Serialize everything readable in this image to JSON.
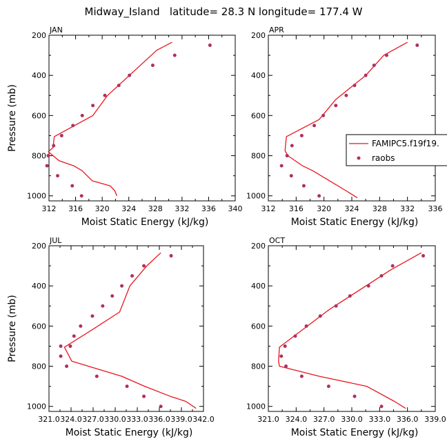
{
  "figure": {
    "title": "Midway_Island   latitude= 28.3 N longitude= 177.4 W"
  },
  "legend": {
    "entries": [
      {
        "label": "FAMIPC5.f19f19.",
        "kind": "line",
        "color": "#e8141c"
      },
      {
        "label": "raobs",
        "kind": "marker",
        "color": "#b03060"
      }
    ],
    "placement": "right of APR panel"
  },
  "colors": {
    "model_line": "#e8141c",
    "raobs_marker": "#b03060",
    "axes": "#000000"
  },
  "chart_data": [
    {
      "type": "line",
      "panel": "JAN",
      "title": "JAN",
      "xlabel": "Moist Static Energy (kJ/kg)",
      "ylabel": "Pressure (mb)",
      "xlim": [
        312,
        340
      ],
      "ylim": [
        1025,
        200
      ],
      "xticks": [
        312,
        316,
        320,
        324,
        328,
        332,
        336,
        340
      ],
      "xticklabels": [
        "312",
        "316",
        "320",
        "324",
        "328",
        "332",
        "336",
        "340"
      ],
      "yticks": [
        200,
        400,
        600,
        800,
        1000
      ],
      "yticklabels": [
        "200",
        "400",
        "600",
        "800",
        "1000"
      ],
      "series": [
        {
          "name": "FAMIPC5.f19f19.",
          "type": "line",
          "color": "#e8141c",
          "x": [
            330.5,
            328.2,
            320.8,
            318.6,
            312.8,
            312.6,
            311.9,
            313.5,
            315.7,
            317.0,
            318.5,
            321.2,
            321.9,
            322.2
          ],
          "y": [
            235,
            275,
            500,
            600,
            705,
            760,
            780,
            825,
            850,
            875,
            925,
            950,
            975,
            1000
          ]
        },
        {
          "name": "raobs",
          "type": "scatter",
          "color": "#b03060",
          "x": [
            336.2,
            330.9,
            327.6,
            324.1,
            322.5,
            320.4,
            318.6,
            317.0,
            315.6,
            313.9,
            312.7,
            311.9,
            311.7,
            313.3,
            315.5,
            316.9
          ],
          "y": [
            250,
            300,
            350,
            400,
            450,
            500,
            550,
            600,
            650,
            700,
            750,
            800,
            850,
            900,
            950,
            1000
          ]
        }
      ]
    },
    {
      "type": "line",
      "panel": "APR",
      "title": "APR",
      "xlabel": "Moist Static Energy (kJ/kg)",
      "ylabel": "",
      "xlim": [
        312,
        336
      ],
      "ylim": [
        1025,
        200
      ],
      "xticks": [
        312,
        316,
        320,
        324,
        328,
        332,
        336
      ],
      "xticklabels": [
        "312",
        "316",
        "320",
        "324",
        "328",
        "332",
        "336"
      ],
      "yticks": [
        200,
        400,
        600,
        800,
        1000
      ],
      "yticklabels": [
        "200",
        "400",
        "600",
        "800",
        "1000"
      ],
      "series": [
        {
          "name": "FAMIPC5.f19f19.",
          "type": "line",
          "color": "#e8141c",
          "x": [
            332.0,
            328.6,
            326.0,
            321.7,
            319.3,
            314.6,
            314.4,
            314.8,
            316.9,
            318.4,
            320.8,
            323.2,
            324.8
          ],
          "y": [
            235,
            300,
            400,
            520,
            620,
            705,
            775,
            800,
            850,
            875,
            925,
            975,
            1010
          ]
        },
        {
          "name": "raobs",
          "type": "scatter",
          "color": "#b03060",
          "x": [
            333.4,
            329.0,
            327.2,
            326.0,
            324.4,
            323.2,
            321.7,
            319.9,
            318.6,
            316.8,
            315.4,
            314.7,
            313.9,
            315.3,
            317.1,
            319.3
          ],
          "y": [
            250,
            300,
            350,
            400,
            450,
            500,
            550,
            600,
            650,
            700,
            750,
            800,
            850,
            900,
            950,
            1000
          ]
        }
      ]
    },
    {
      "type": "line",
      "panel": "JUL",
      "title": "JUL",
      "xlabel": "Moist Static Energy (kJ/kg)",
      "ylabel": "Pressure (mb)",
      "xlim": [
        321.0,
        342.0
      ],
      "ylim": [
        1025,
        200
      ],
      "xticks": [
        321.0,
        324.0,
        327.0,
        330.0,
        333.0,
        336.0,
        339.0,
        342.0
      ],
      "xticklabels": [
        "321.0",
        "324.0",
        "327.0",
        "330.0",
        "333.0",
        "336.0",
        "339.0",
        "342.0"
      ],
      "yticks": [
        200,
        400,
        600,
        800,
        1000
      ],
      "yticklabels": [
        "200",
        "400",
        "600",
        "800",
        "1000"
      ],
      "series": [
        {
          "name": "FAMIPC5.f19f19.",
          "type": "line",
          "color": "#e8141c",
          "x": [
            336.2,
            334.3,
            332.0,
            330.6,
            326.8,
            323.1,
            324.1,
            330.9,
            334.0,
            337.5,
            339.6,
            340.6,
            341.0
          ],
          "y": [
            235,
            300,
            400,
            530,
            620,
            705,
            775,
            850,
            900,
            950,
            975,
            1000,
            1010
          ]
        },
        {
          "name": "raobs",
          "type": "scatter",
          "color": "#b03060",
          "x": [
            337.6,
            333.9,
            332.3,
            330.9,
            329.6,
            328.3,
            326.9,
            325.3,
            324.4,
            323.9,
            322.6,
            322.6,
            323.4,
            327.5,
            331.6,
            333.9,
            336.2
          ],
          "y": [
            250,
            300,
            350,
            400,
            450,
            500,
            550,
            600,
            650,
            700,
            700,
            750,
            800,
            850,
            900,
            950,
            1000
          ]
        }
      ]
    },
    {
      "type": "line",
      "panel": "OCT",
      "title": "OCT",
      "xlabel": "Moist Static Energy (kJ/kg)",
      "ylabel": "",
      "xlim": [
        321.0,
        339.0
      ],
      "ylim": [
        1025,
        200
      ],
      "xticks": [
        321.0,
        324.0,
        327.0,
        330.0,
        333.0,
        336.0,
        339.0
      ],
      "xticklabels": [
        "321.0",
        "324.0",
        "327.0",
        "330.0",
        "333.0",
        "336.0",
        "339.0"
      ],
      "yticks": [
        200,
        400,
        600,
        800,
        1000
      ],
      "yticklabels": [
        "200",
        "400",
        "600",
        "800",
        "1000"
      ],
      "series": [
        {
          "name": "FAMIPC5.f19f19.",
          "type": "line",
          "color": "#e8141c",
          "x": [
            337.5,
            334.2,
            327.5,
            322.2,
            322.1,
            322.2,
            326.5,
            331.6,
            334.6,
            335.8
          ],
          "y": [
            235,
            320,
            520,
            705,
            775,
            800,
            850,
            900,
            975,
            1010
          ]
        },
        {
          "name": "raobs",
          "type": "scatter",
          "color": "#b03060",
          "x": [
            337.7,
            334.4,
            333.2,
            331.8,
            329.8,
            328.3,
            326.6,
            325.1,
            323.9,
            322.8,
            322.4,
            322.9,
            324.6,
            327.5,
            330.3,
            333.2
          ],
          "y": [
            250,
            300,
            350,
            400,
            450,
            500,
            550,
            600,
            650,
            700,
            750,
            800,
            850,
            900,
            950,
            1000
          ]
        }
      ]
    }
  ]
}
